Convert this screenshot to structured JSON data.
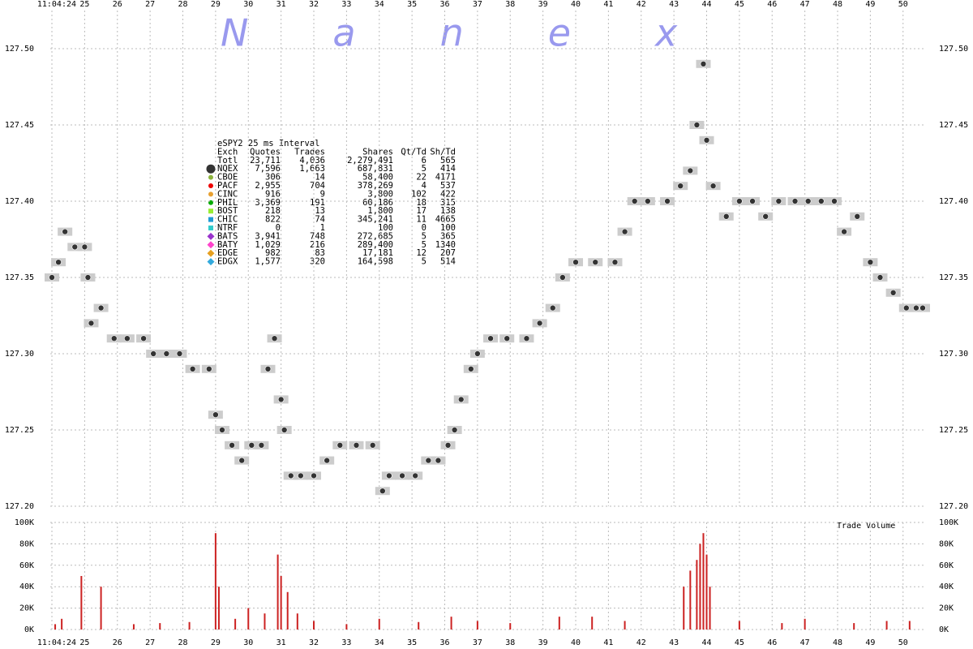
{
  "chart_data": [
    {
      "type": "scatter",
      "watermark": "Nanex",
      "xlim": [
        23.95,
        50.65
      ],
      "ylim": [
        127.2,
        127.525
      ],
      "xticks": [
        {
          "value": 24,
          "label": "11:04:24"
        },
        25,
        26,
        27,
        28,
        29,
        30,
        31,
        32,
        33,
        34,
        35,
        36,
        37,
        38,
        39,
        40,
        41,
        42,
        43,
        44,
        45,
        46,
        47,
        48,
        49,
        50
      ],
      "yticks": [
        {
          "value": 127.2,
          "label": "127.20"
        },
        127.25,
        {
          "value": 127.3,
          "label": "127.30"
        },
        127.35,
        {
          "value": 127.4,
          "label": "127.40"
        },
        127.45,
        {
          "value": 127.5,
          "label": "127.50"
        }
      ],
      "grid": true,
      "color": "#333333",
      "band_color": "#cccccc",
      "x": [
        24.0,
        24.2,
        24.4,
        24.7,
        25.0,
        25.1,
        25.2,
        25.5,
        25.9,
        26.3,
        26.8,
        27.1,
        27.5,
        27.9,
        28.3,
        28.8,
        29.0,
        29.2,
        29.5,
        29.8,
        30.1,
        30.4,
        30.6,
        30.8,
        31.0,
        31.1,
        31.3,
        31.6,
        32.0,
        32.4,
        32.8,
        33.3,
        33.8,
        34.1,
        34.3,
        34.7,
        35.1,
        35.5,
        35.8,
        36.1,
        36.3,
        36.5,
        36.8,
        37.0,
        37.4,
        37.9,
        38.5,
        38.9,
        39.3,
        39.6,
        40.0,
        40.6,
        41.2,
        41.5,
        41.8,
        42.2,
        42.8,
        43.2,
        43.5,
        43.7,
        43.9,
        44.0,
        44.2,
        44.6,
        45.0,
        45.4,
        45.8,
        46.2,
        46.7,
        47.1,
        47.5,
        47.9,
        48.2,
        48.6,
        49.0,
        49.3,
        49.7,
        50.1,
        50.4,
        50.6
      ],
      "values": [
        127.35,
        127.36,
        127.38,
        127.37,
        127.37,
        127.35,
        127.32,
        127.33,
        127.31,
        127.31,
        127.31,
        127.3,
        127.3,
        127.3,
        127.29,
        127.29,
        127.26,
        127.25,
        127.24,
        127.23,
        127.24,
        127.24,
        127.29,
        127.31,
        127.27,
        127.25,
        127.22,
        127.22,
        127.22,
        127.23,
        127.24,
        127.24,
        127.24,
        127.21,
        127.22,
        127.22,
        127.22,
        127.23,
        127.23,
        127.24,
        127.25,
        127.27,
        127.29,
        127.3,
        127.31,
        127.31,
        127.31,
        127.32,
        127.33,
        127.35,
        127.36,
        127.36,
        127.36,
        127.38,
        127.4,
        127.4,
        127.4,
        127.41,
        127.42,
        127.45,
        127.49,
        127.44,
        127.41,
        127.39,
        127.4,
        127.4,
        127.39,
        127.4,
        127.4,
        127.4,
        127.4,
        127.4,
        127.38,
        127.39,
        127.36,
        127.35,
        127.34,
        127.33,
        127.33,
        127.33
      ],
      "legend": {
        "title": "eSPY2 25 ms Interval",
        "header": [
          "Exch",
          "Quotes",
          "Trades",
          "Shares",
          "Qt/Td",
          "Sh/Td"
        ],
        "rows": [
          {
            "cells": [
              "Totl",
              "23,711",
              "4,036",
              "2,279,491",
              "6",
              "565"
            ]
          },
          {
            "cells": [
              "NQEX",
              "7,596",
              "1,663",
              "687,831",
              "5",
              "414"
            ],
            "color": "#333333",
            "marker": "big-circle"
          },
          {
            "cells": [
              "CBOE",
              "306",
              "14",
              "58,400",
              "22",
              "4171"
            ],
            "color": "#8cb43c",
            "marker": "circle"
          },
          {
            "cells": [
              "PACF",
              "2,955",
              "704",
              "378,269",
              "4",
              "537"
            ],
            "color": "#ee0000",
            "marker": "circle"
          },
          {
            "cells": [
              "CINC",
              "916",
              "9",
              "3,800",
              "102",
              "422"
            ],
            "color": "#e8a030",
            "marker": "circle"
          },
          {
            "cells": [
              "PHIL",
              "3,369",
              "191",
              "60,186",
              "18",
              "315"
            ],
            "color": "#00aa00",
            "marker": "circle"
          },
          {
            "cells": [
              "BOST",
              "218",
              "13",
              "1,800",
              "17",
              "138"
            ],
            "color": "#99ee33",
            "marker": "square"
          },
          {
            "cells": [
              "CHIC",
              "822",
              "74",
              "345,241",
              "11",
              "4665"
            ],
            "color": "#1f9bd5",
            "marker": "square"
          },
          {
            "cells": [
              "NTRF",
              "0",
              "1",
              "100",
              "0",
              "100"
            ],
            "color": "#33cccc",
            "marker": "square"
          },
          {
            "cells": [
              "BATS",
              "3,941",
              "748",
              "272,685",
              "5",
              "365"
            ],
            "color": "#9933cc",
            "marker": "diamond"
          },
          {
            "cells": [
              "BATY",
              "1,029",
              "216",
              "289,400",
              "5",
              "1340"
            ],
            "color": "#ff44cc",
            "marker": "diamond"
          },
          {
            "cells": [
              "EDGE",
              "982",
              "83",
              "17,181",
              "12",
              "207"
            ],
            "color": "#e6a020",
            "marker": "diamond"
          },
          {
            "cells": [
              "EDGX",
              "1,577",
              "320",
              "164,598",
              "5",
              "514"
            ],
            "color": "#33aadd",
            "marker": "diamond"
          }
        ]
      }
    },
    {
      "type": "bar",
      "label": "Trade Volume",
      "ylim": [
        0,
        100000
      ],
      "yticks": [
        {
          "value": 0,
          "label": "0K"
        },
        {
          "value": 20000,
          "label": "20K"
        },
        {
          "value": 40000,
          "label": "40K"
        },
        {
          "value": 60000,
          "label": "60K"
        },
        {
          "value": 80000,
          "label": "80K"
        },
        {
          "value": 100000,
          "label": "100K"
        }
      ],
      "color": "#cc2222",
      "x": [
        24.1,
        24.3,
        24.9,
        25.5,
        26.5,
        27.3,
        28.2,
        29.0,
        29.1,
        29.6,
        30.0,
        30.5,
        30.9,
        31.0,
        31.2,
        31.5,
        32.0,
        33.0,
        34.0,
        35.2,
        36.2,
        37.0,
        38.0,
        39.5,
        40.5,
        41.5,
        43.3,
        43.5,
        43.7,
        43.8,
        43.9,
        44.0,
        44.1,
        45.0,
        46.3,
        47.0,
        48.5,
        49.5,
        50.2
      ],
      "values": [
        5000,
        10000,
        50000,
        40000,
        5000,
        6000,
        7000,
        90000,
        40000,
        10000,
        20000,
        15000,
        70000,
        50000,
        35000,
        15000,
        8000,
        5000,
        10000,
        7000,
        12000,
        8000,
        6000,
        12000,
        12000,
        8000,
        40000,
        55000,
        65000,
        80000,
        90000,
        70000,
        40000,
        8000,
        6000,
        10000,
        6000,
        8000,
        8000
      ]
    }
  ]
}
